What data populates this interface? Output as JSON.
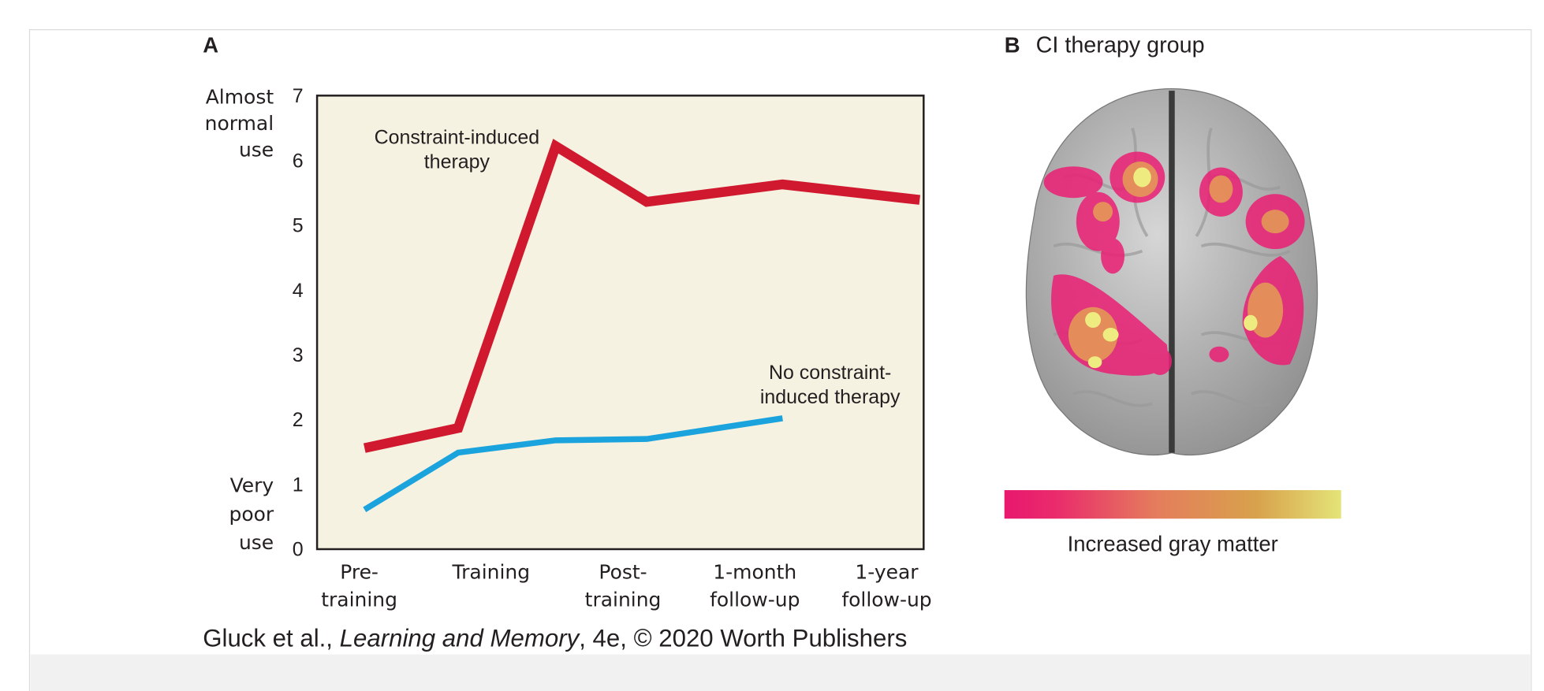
{
  "panel_a": "A",
  "panel_b": "B",
  "panel_b_title": "CI therapy group",
  "legend_label": "Increased gray matter",
  "caption": [
    "Gluck et al., ",
    "Learning and Memory",
    ", 4e, © 2020 Worth Publishers"
  ],
  "chart_data": {
    "type": "line",
    "y_top_label": "Almost\nnormal\nuse",
    "y_bottom_label": "Very\npoor\nuse",
    "xlim": [
      -0.32,
      4.28
    ],
    "xticks": [
      {
        "value": 0,
        "label": "Pre-\ntraining"
      },
      {
        "value": 1,
        "label": "Training"
      },
      {
        "value": 2,
        "label": "Post-\ntraining"
      },
      {
        "value": 3,
        "label": "1-month\nfollow-up"
      },
      {
        "value": 4,
        "label": "1-year\nfollow-up"
      }
    ],
    "ylim": [
      0,
      7
    ],
    "yticks": [
      0,
      1,
      2,
      3,
      4,
      5,
      6,
      7
    ],
    "series": [
      {
        "name": "Constraint-induced\ntherapy",
        "color": "#d0192e",
        "x": [
          0.04,
          0.75,
          1.49,
          2.18,
          3.21,
          4.25
        ],
        "values": [
          1.56,
          1.87,
          6.22,
          5.36,
          5.63,
          5.39
        ]
      },
      {
        "name": "No constraint-\ninduced therapy",
        "color": "#1aa3dc",
        "x": [
          0.04,
          0.75,
          1.49,
          2.18,
          3.21
        ],
        "values": [
          0.61,
          1.49,
          1.68,
          1.7,
          2.02
        ]
      }
    ]
  }
}
